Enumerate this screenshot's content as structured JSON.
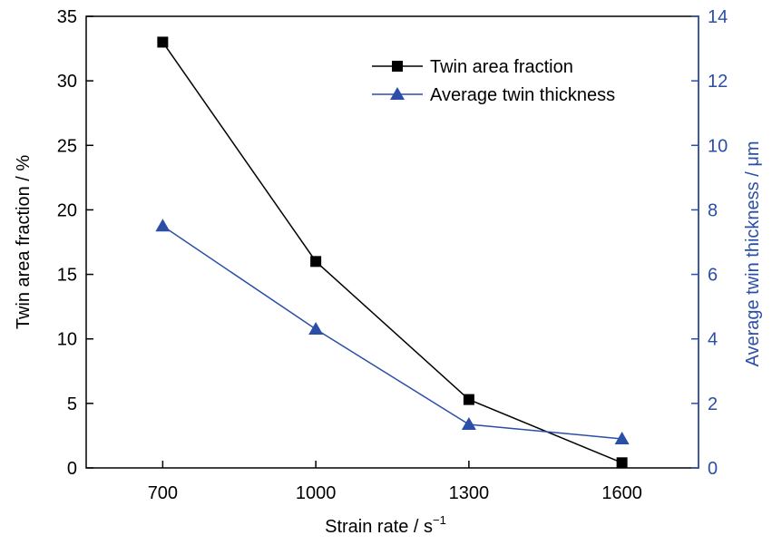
{
  "chart_data": {
    "type": "line",
    "x": [
      700,
      1000,
      1300,
      1600
    ],
    "x_tick_labels": [
      "700",
      "1000",
      "1300",
      "1600"
    ],
    "xlim": [
      550,
      1750
    ],
    "xlabel": "Strain rate / s",
    "xlabel_sup": "−1",
    "y_left": {
      "label": "Twin area fraction / %",
      "lim": [
        0,
        35
      ],
      "ticks": [
        0,
        5,
        10,
        15,
        20,
        25,
        30,
        35
      ],
      "tick_labels": [
        "0",
        "5",
        "10",
        "15",
        "20",
        "25",
        "30",
        "35"
      ]
    },
    "y_right": {
      "label": "Average twin thickness / μm",
      "lim": [
        0,
        14
      ],
      "ticks": [
        0,
        2,
        4,
        6,
        8,
        10,
        12,
        14
      ],
      "tick_labels": [
        "0",
        "2",
        "4",
        "6",
        "8",
        "10",
        "12",
        "14"
      ]
    },
    "series": [
      {
        "name": "Twin area fraction",
        "axis": "left",
        "marker": "square",
        "color": "#000000",
        "values": [
          33.0,
          16.0,
          5.3,
          0.4
        ]
      },
      {
        "name": "Average twin thickness",
        "axis": "right",
        "marker": "triangle",
        "color": "#2b4ea8",
        "values": [
          7.5,
          4.3,
          1.35,
          0.9
        ]
      }
    ],
    "legend_position": "top-right",
    "grid": false
  }
}
